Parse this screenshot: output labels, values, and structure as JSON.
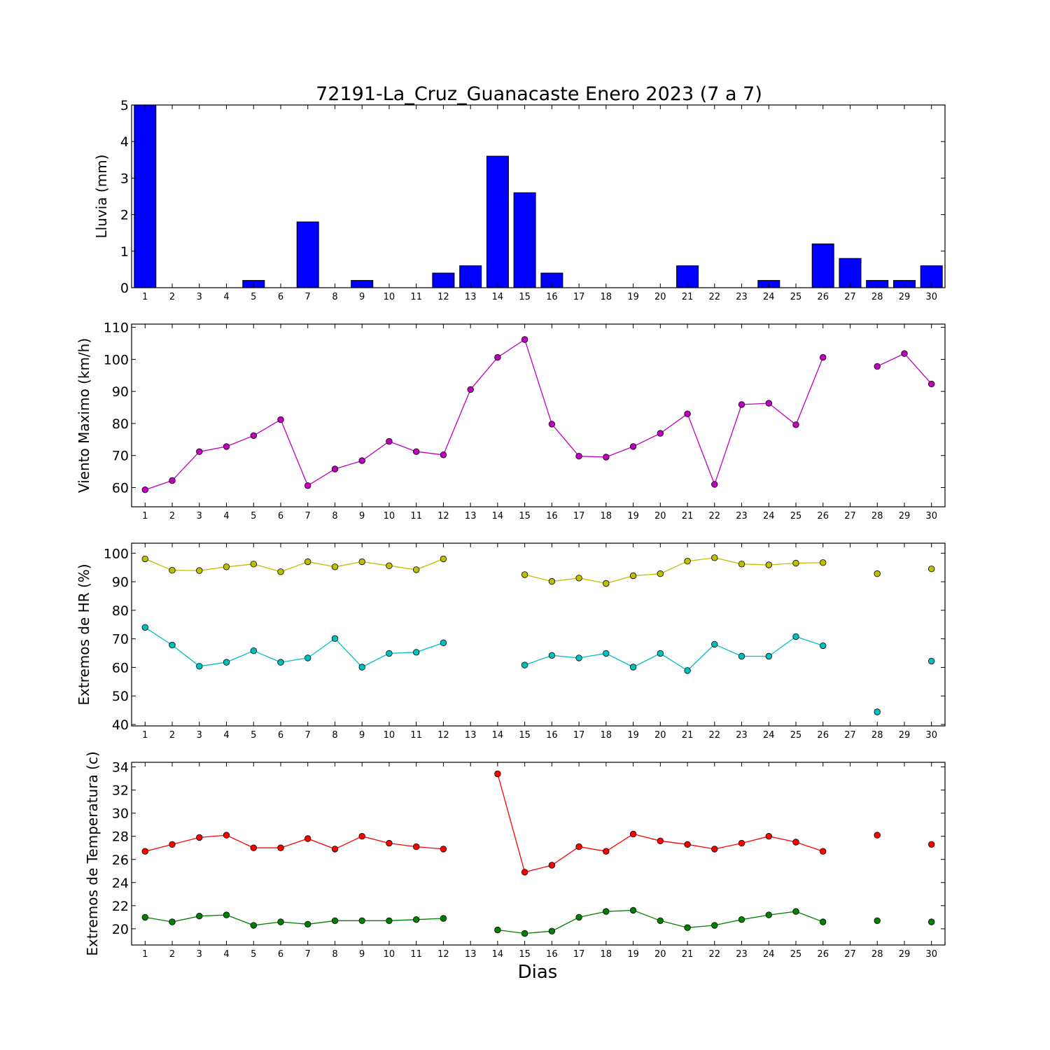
{
  "title": "72191-La_Cruz_Guanacaste Enero 2023  (7 a 7)",
  "xlabel": "Dias",
  "days": [
    "1",
    "2",
    "3",
    "4",
    "5",
    "6",
    "7",
    "8",
    "9",
    "10",
    "11",
    "12",
    "13",
    "14",
    "15",
    "16",
    "17",
    "18",
    "19",
    "20",
    "21",
    "22",
    "23",
    "24",
    "25",
    "26",
    "27",
    "28",
    "29",
    "30"
  ],
  "chart_data": [
    {
      "type": "bar",
      "ylabel": "Lluvia (mm)",
      "ylim": [
        0,
        5
      ],
      "yticks": [
        0,
        1,
        2,
        3,
        4,
        5
      ],
      "grid": false,
      "categories": [
        "1",
        "2",
        "3",
        "4",
        "5",
        "6",
        "7",
        "8",
        "9",
        "10",
        "11",
        "12",
        "13",
        "14",
        "15",
        "16",
        "17",
        "18",
        "19",
        "20",
        "21",
        "22",
        "23",
        "24",
        "25",
        "26",
        "27",
        "28",
        "29",
        "30"
      ],
      "series": [
        {
          "color": "#0000ff",
          "values": [
            5.0,
            0,
            0,
            0,
            0.2,
            0,
            1.8,
            0,
            0.2,
            0,
            0,
            0.4,
            0.6,
            3.6,
            2.6,
            0.4,
            0,
            0,
            0,
            0,
            0.6,
            0,
            0,
            0.2,
            0,
            1.2,
            0.8,
            0.2,
            0.2,
            0.6
          ]
        }
      ]
    },
    {
      "type": "line",
      "ylabel": "Viento Maximo (km/h)",
      "ylim": [
        54,
        111
      ],
      "yticks": [
        60,
        70,
        80,
        90,
        100,
        110
      ],
      "grid": false,
      "x": [
        1,
        2,
        3,
        4,
        5,
        6,
        7,
        8,
        9,
        10,
        11,
        12,
        13,
        14,
        15,
        16,
        17,
        18,
        19,
        20,
        21,
        22,
        23,
        24,
        25,
        26,
        27,
        28,
        29,
        30
      ],
      "series": [
        {
          "color": "#bf00bf",
          "values": [
            59.3,
            62.2,
            71.2,
            72.8,
            76.2,
            81.2,
            60.6,
            65.8,
            68.4,
            74.4,
            71.2,
            70.2,
            90.6,
            100.6,
            106.2,
            79.8,
            69.8,
            69.5,
            72.8,
            76.9,
            83.0,
            61.0,
            85.9,
            86.3,
            79.6,
            100.6,
            null,
            97.8,
            101.8,
            92.3
          ]
        }
      ]
    },
    {
      "type": "line",
      "ylabel": "Extremos de HR (%)",
      "ylim": [
        39.5,
        103.5
      ],
      "yticks": [
        40,
        50,
        60,
        70,
        80,
        90,
        100
      ],
      "grid": false,
      "x": [
        1,
        2,
        3,
        4,
        5,
        6,
        7,
        8,
        9,
        10,
        11,
        12,
        13,
        14,
        15,
        16,
        17,
        18,
        19,
        20,
        21,
        22,
        23,
        24,
        25,
        26,
        27,
        28,
        29,
        30
      ],
      "series": [
        {
          "color": "#bfbf00",
          "values": [
            98.0,
            94.0,
            93.9,
            95.2,
            96.2,
            93.5,
            97.0,
            95.2,
            97.0,
            95.6,
            94.2,
            98.0,
            null,
            null,
            92.5,
            90.1,
            91.3,
            89.4,
            92.1,
            92.8,
            97.2,
            98.4,
            96.2,
            95.9,
            96.5,
            96.7,
            null,
            92.8,
            null,
            94.5
          ]
        },
        {
          "color": "#00bfbf",
          "values": [
            74.0,
            67.8,
            60.4,
            61.8,
            65.8,
            61.8,
            63.3,
            70.1,
            60.1,
            64.9,
            65.3,
            68.6,
            null,
            null,
            60.8,
            64.2,
            63.3,
            64.9,
            60.1,
            64.9,
            58.9,
            68.1,
            63.9,
            63.9,
            70.8,
            67.6,
            null,
            44.4,
            null,
            62.2
          ]
        }
      ]
    },
    {
      "type": "line",
      "ylabel": "Extremos de Temperatura (c)",
      "ylim": [
        18.6,
        34.4
      ],
      "yticks": [
        20,
        22,
        24,
        26,
        28,
        30,
        32,
        34
      ],
      "grid": false,
      "x": [
        1,
        2,
        3,
        4,
        5,
        6,
        7,
        8,
        9,
        10,
        11,
        12,
        13,
        14,
        15,
        16,
        17,
        18,
        19,
        20,
        21,
        22,
        23,
        24,
        25,
        26,
        27,
        28,
        29,
        30
      ],
      "series": [
        {
          "color": "#ff0000",
          "values": [
            26.7,
            27.3,
            27.9,
            28.1,
            27.0,
            27.0,
            27.8,
            26.9,
            28.0,
            27.4,
            27.1,
            26.9,
            null,
            33.4,
            24.9,
            25.5,
            27.1,
            26.7,
            28.2,
            27.6,
            27.3,
            26.9,
            27.4,
            28.0,
            27.5,
            26.7,
            null,
            28.1,
            null,
            27.3
          ]
        },
        {
          "color": "#008000",
          "values": [
            21.0,
            20.6,
            21.1,
            21.2,
            20.3,
            20.6,
            20.4,
            20.7,
            20.7,
            20.7,
            20.8,
            20.9,
            null,
            19.9,
            19.6,
            19.8,
            21.0,
            21.5,
            21.6,
            20.7,
            20.1,
            20.3,
            20.8,
            21.2,
            21.5,
            20.6,
            null,
            20.7,
            null,
            20.6
          ]
        }
      ]
    }
  ]
}
